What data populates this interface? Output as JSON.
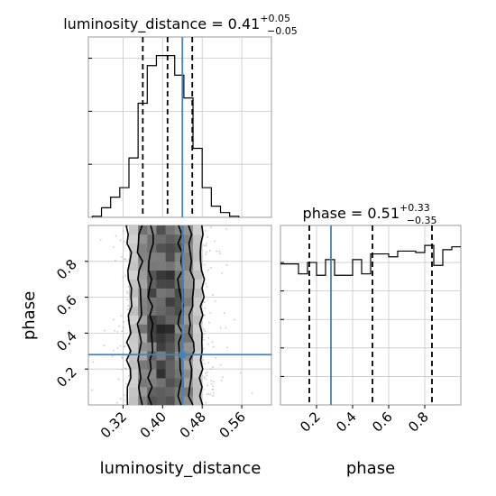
{
  "figure": {
    "colors": {
      "hist_line": "#000000",
      "truth": "#4682b4",
      "grid": "#c8c8c8",
      "axes_edge": "#9a9a9a",
      "scatter": "#9a9a9a"
    }
  },
  "chart_data": [
    {
      "type": "histogram",
      "panel": "luminosity_distance_marginal",
      "title_main": "luminosity_distance = 0.41",
      "title_sup": "+0.05",
      "title_sub": "−0.05",
      "xlim": [
        0.25,
        0.62
      ],
      "ylim": [
        0,
        3400
      ],
      "y_ticks": [
        1000,
        2000,
        3000
      ],
      "x_ticks": [
        0.32,
        0.4,
        0.48,
        0.56
      ],
      "bin_edges": [
        0.258,
        0.2765,
        0.295,
        0.3135,
        0.332,
        0.3505,
        0.369,
        0.3875,
        0.406,
        0.4245,
        0.443,
        0.4615,
        0.48,
        0.4985,
        0.517,
        0.5355,
        0.554
      ],
      "counts": [
        20,
        180,
        380,
        560,
        1120,
        2150,
        2860,
        3050,
        3050,
        2680,
        2250,
        1300,
        560,
        210,
        90,
        20
      ],
      "quantiles": [
        0.36,
        0.41,
        0.46
      ],
      "truth": 0.44,
      "grid": true
    },
    {
      "type": "histogram",
      "panel": "phase_marginal",
      "title_main": "phase = 0.51",
      "title_sup": "+0.33",
      "title_sub": "−0.35",
      "xlim": [
        0.0,
        1.0
      ],
      "ylim": [
        0,
        630
      ],
      "y_ticks": [
        100,
        200,
        300,
        400,
        500
      ],
      "x_ticks": [
        0.2,
        0.4,
        0.6,
        0.8
      ],
      "bin_edges": [
        0.0,
        0.05,
        0.1,
        0.15,
        0.2,
        0.25,
        0.3,
        0.35,
        0.4,
        0.45,
        0.5,
        0.55,
        0.6,
        0.65,
        0.7,
        0.75,
        0.8,
        0.85,
        0.9,
        0.95,
        1.0
      ],
      "counts": [
        495,
        495,
        460,
        500,
        455,
        510,
        455,
        455,
        510,
        460,
        530,
        530,
        520,
        540,
        540,
        535,
        560,
        490,
        545,
        555
      ],
      "quantiles": [
        0.16,
        0.51,
        0.84
      ],
      "truth": 0.28,
      "grid": true
    },
    {
      "type": "heatmap",
      "panel": "joint_luminosity_distance_phase",
      "xlabel": "luminosity_distance",
      "ylabel": "phase",
      "xlim": [
        0.25,
        0.62
      ],
      "ylim": [
        0.0,
        1.0
      ],
      "x_ticks": [
        0.32,
        0.4,
        0.48,
        0.56
      ],
      "y_ticks": [
        0.2,
        0.4,
        0.6,
        0.8
      ],
      "x_edges": [
        0.332,
        0.3505,
        0.369,
        0.3875,
        0.406,
        0.4245,
        0.443,
        0.4615,
        0.48
      ],
      "y_edges": [
        0.0,
        0.05,
        0.1,
        0.15,
        0.2,
        0.25,
        0.3,
        0.35,
        0.4,
        0.45,
        0.5,
        0.55,
        0.6,
        0.65,
        0.7,
        0.75,
        0.8,
        0.85,
        0.9,
        0.95,
        1.0
      ],
      "contour_levels": [
        0.39,
        0.86
      ],
      "truth": [
        0.44,
        0.28
      ],
      "grid": true
    }
  ]
}
